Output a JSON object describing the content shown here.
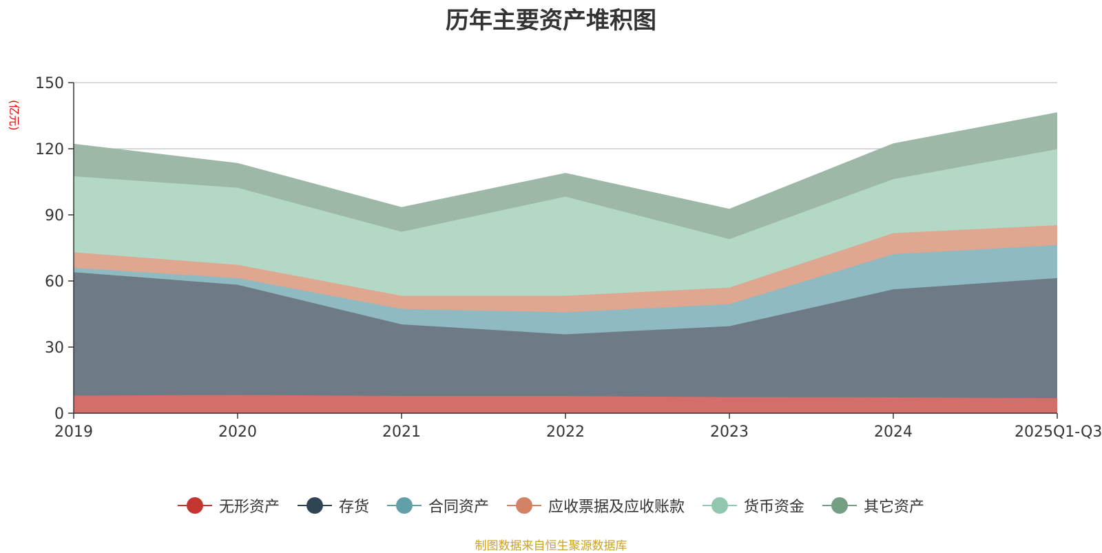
{
  "title": "历年主要资产堆积图",
  "unit_label": "(亿元)",
  "source": "制图数据来自恒生聚源数据库",
  "chart_data": {
    "type": "area",
    "stacked": true,
    "title": "历年主要资产堆积图",
    "ylabel": "(亿元)",
    "categories": [
      "2019",
      "2020",
      "2021",
      "2022",
      "2023",
      "2024",
      "2025Q1-Q3"
    ],
    "ylim": [
      0,
      150
    ],
    "yticks": [
      0,
      30,
      60,
      90,
      120,
      150
    ],
    "grid": true,
    "legend_position": "bottom",
    "series": [
      {
        "name": "无形资产",
        "color": "#c23531",
        "fill": "#d46e6a",
        "values": [
          8,
          8.3,
          7.8,
          7.8,
          7.3,
          7.2,
          6.8
        ]
      },
      {
        "name": "存货",
        "color": "#2f4554",
        "fill": "#6e7b87",
        "values": [
          56,
          50,
          32.5,
          28,
          32.2,
          49,
          54.5
        ]
      },
      {
        "name": "合同资产",
        "color": "#61a0a8",
        "fill": "#90bac2",
        "values": [
          2,
          3,
          7,
          10,
          10,
          16,
          15
        ]
      },
      {
        "name": "应收票据及应收账款",
        "color": "#d48265",
        "fill": "#dfa690",
        "values": [
          7,
          6,
          6,
          7.5,
          7.5,
          9.5,
          9
        ]
      },
      {
        "name": "货币资金",
        "color": "#91c7ae",
        "fill": "#b3d8c6",
        "values": [
          34.5,
          35,
          29,
          45,
          22,
          24.5,
          34.5
        ]
      },
      {
        "name": "其它资产",
        "color": "#749f83",
        "fill": "#9db8a6",
        "values": [
          14.5,
          11,
          11,
          10.5,
          13.5,
          16,
          16.5
        ]
      }
    ]
  }
}
